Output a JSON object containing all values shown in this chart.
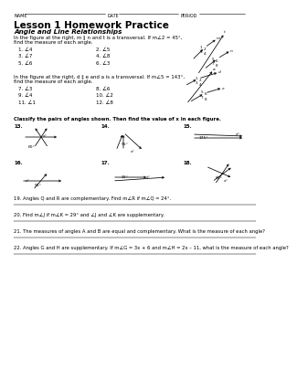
{
  "title": "Lesson 1 Homework Practice",
  "subtitle": "Angle and Line Relationships",
  "section1_text1": "In the figure at the right, m ∥ n and t is a transversal. If m∠2 = 45°,",
  "section1_text2": "find the measure of each angle.",
  "section1_problems": [
    "1. ∠4",
    "2. ∠5",
    "3. ∠7",
    "4. ∠8",
    "5. ∠6",
    "6. ∠3"
  ],
  "section2_text1": "In the figure at the right, d ∥ e and a is a transversal. If m∠5 = 143°,",
  "section2_text2": "find the measure of each angle.",
  "section2_problems": [
    "7. ∠3",
    "8. ∠6",
    "9. ∠4",
    "10. ∠2",
    "11. ∠1",
    "12. ∠8"
  ],
  "section3_text": "Classify the pairs of angles shown. Then find the value of x in each figure.",
  "word_problems": [
    "19. Angles Q and R are complementary. Find m∠R if m∠Q = 24°.",
    "20. Find m∠J if m∠K = 29° and ∠J and ∠K are supplementary.",
    "21. The measures of angles A and B are equal and complementary. What is the measure of each angle?",
    "22. Angles G and H are supplementary. If m∠G = 3x + 6 and m∠H = 2x – 11, what is the measure of each angle?"
  ],
  "background": "#ffffff"
}
